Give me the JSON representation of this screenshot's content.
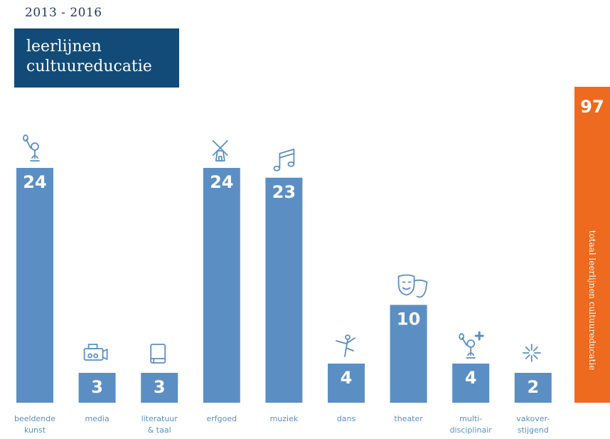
{
  "header": {
    "period": "2013 - 2016",
    "title_line1": "leerlijnen",
    "title_line2": "cultuureducatie"
  },
  "total": {
    "value": "97",
    "label": "totaal leerlijnen cultuureducatie",
    "color": "#ee6a1f"
  },
  "colors": {
    "bar": "#5b8fc4",
    "title_box": "#124b78"
  },
  "chart_data": {
    "type": "bar",
    "categories": [
      [
        "beeldende",
        "kunst"
      ],
      [
        "media"
      ],
      [
        "literatuur",
        "& taal"
      ],
      [
        "erfgoed"
      ],
      [
        "muziek"
      ],
      [
        "dans"
      ],
      [
        "theater"
      ],
      [
        "multi-",
        "disciplinair"
      ],
      [
        "vakover-",
        "stijgend"
      ]
    ],
    "values": [
      24,
      3,
      3,
      24,
      23,
      4,
      10,
      4,
      2
    ],
    "icons": [
      "painter-icon",
      "camera-icon",
      "book-icon",
      "windmill-icon",
      "music-note-icon",
      "dancer-icon",
      "theater-masks-icon",
      "painter-plus-icon",
      "sparkle-icon"
    ],
    "ylim": [
      0,
      24
    ],
    "grid": false,
    "legend": "none"
  }
}
